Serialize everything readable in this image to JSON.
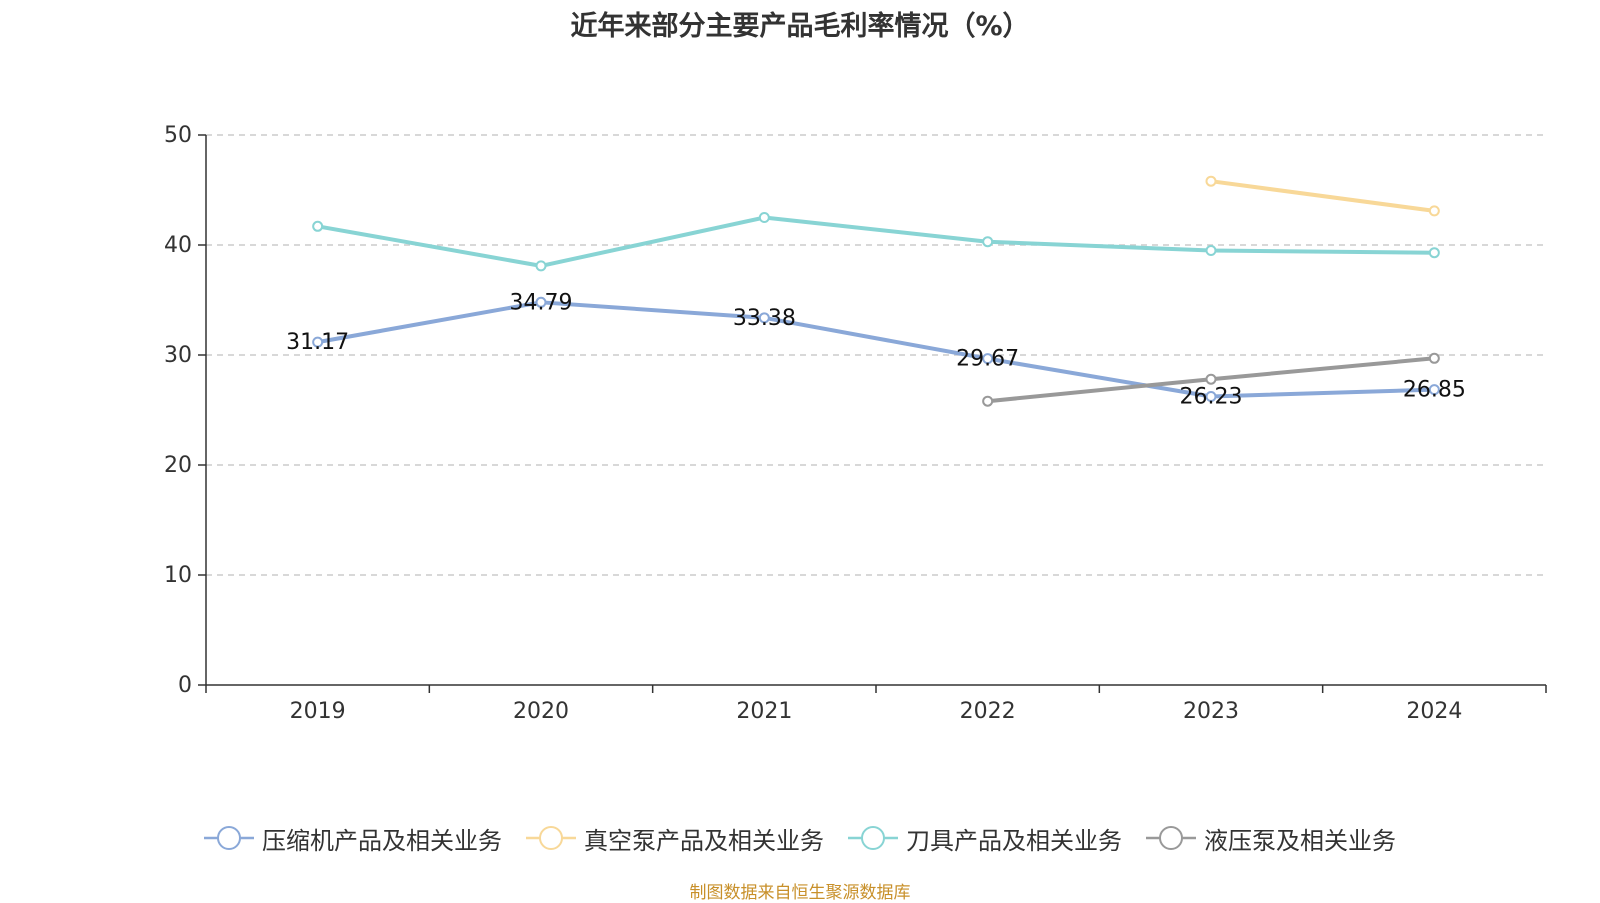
{
  "title": "近年来部分主要产品毛利率情况（%）",
  "source": "制图数据来自恒生聚源数据库",
  "chart_data": {
    "type": "line",
    "title": "近年来部分主要产品毛利率情况（%）",
    "categories": [
      "2019",
      "2020",
      "2021",
      "2022",
      "2023",
      "2024"
    ],
    "ylim": [
      0,
      50
    ],
    "yticks": [
      0,
      10,
      20,
      30,
      40,
      50
    ],
    "grid": true,
    "legend_position": "bottom",
    "series": [
      {
        "name": "压缩机产品及相关业务",
        "color": "#8aa8d8",
        "values": [
          31.17,
          34.79,
          33.38,
          29.67,
          26.23,
          26.85
        ],
        "labels_shown": true
      },
      {
        "name": "真空泵产品及相关业务",
        "color": "#f8d898",
        "values": [
          null,
          null,
          null,
          null,
          45.8,
          43.1
        ],
        "labels_shown": false
      },
      {
        "name": "刀具产品及相关业务",
        "color": "#88d4d4",
        "values": [
          41.7,
          38.1,
          42.5,
          40.3,
          39.5,
          39.3
        ],
        "labels_shown": false
      },
      {
        "name": "液压泵及相关业务",
        "color": "#999999",
        "values": [
          null,
          null,
          null,
          25.8,
          27.8,
          29.7
        ],
        "labels_shown": false
      }
    ]
  }
}
